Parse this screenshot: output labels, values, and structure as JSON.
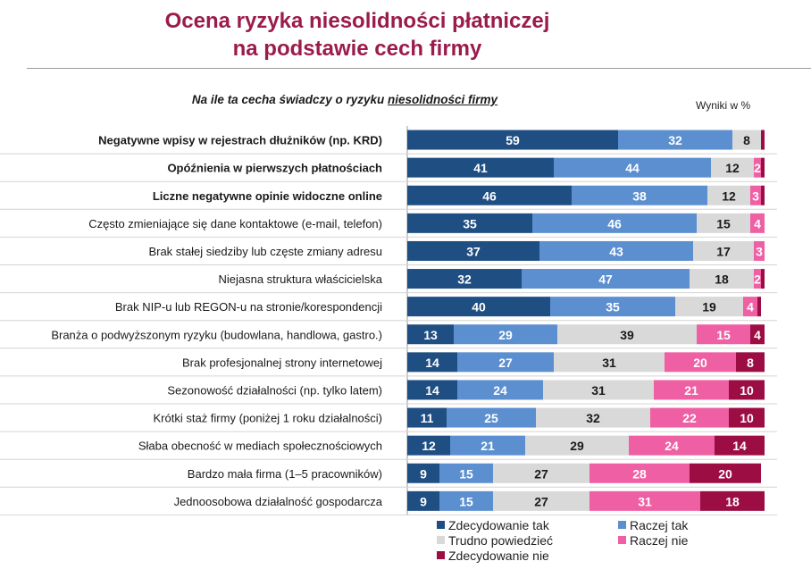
{
  "header": {
    "title_line1": "Ocena ryzyka niesolidności płatniczej",
    "title_line2": "na podstawie cech firmy",
    "subtitle_prefix": "Na ile ta cecha świadczy o ryzyku ",
    "subtitle_underlined": "niesolidności firmy",
    "units": "Wyniki w %"
  },
  "colors": {
    "title": "#9b1b4b",
    "series": [
      "#1f4e83",
      "#5b8fd0",
      "#d9d9d9",
      "#ef5fa3",
      "#9c0d44"
    ],
    "label_on_series": [
      "#ffffff",
      "#ffffff",
      "#1a1a1a",
      "#ffffff",
      "#ffffff"
    ]
  },
  "chart_data": {
    "type": "bar",
    "orientation": "horizontal",
    "stacked": true,
    "xlim": [
      0,
      100
    ],
    "title": "Ocena ryzyka niesolidności płatniczej na podstawie cech firmy",
    "categories": [
      "Negatywne wpisy w rejestrach dłużników (np. KRD)",
      "Opóźnienia w pierwszych płatnościach",
      "Liczne negatywne opinie widoczne online",
      "Często zmieniające się dane kontaktowe (e-mail, telefon)",
      "Brak stałej siedziby lub częste zmiany adresu",
      "Niejasna struktura właścicielska",
      "Brak NIP-u lub REGON-u na stronie/korespondencji",
      "Branża o podwyższonym ryzyku (budowlana, handlowa, gastro.)",
      "Brak profesjonalnej strony internetowej",
      "Sezonowość działalności (np. tylko latem)",
      "Krótki staż firmy (poniżej 1 roku działalności)",
      "Słaba obecność w mediach społecznościowych",
      "Bardzo mała firma (1–5 pracowników)",
      "Jednoosobowa działalność gospodarcza"
    ],
    "bold_categories": [
      0,
      1,
      2
    ],
    "series": [
      {
        "name": "Zdecydowanie tak",
        "values": [
          59,
          41,
          46,
          35,
          37,
          32,
          40,
          13,
          14,
          14,
          11,
          12,
          9,
          9
        ]
      },
      {
        "name": "Raczej tak",
        "values": [
          32,
          44,
          38,
          46,
          43,
          47,
          35,
          29,
          27,
          24,
          25,
          21,
          15,
          15
        ]
      },
      {
        "name": "Trudno powiedzieć",
        "values": [
          8,
          12,
          12,
          15,
          17,
          18,
          19,
          39,
          31,
          31,
          32,
          29,
          27,
          27
        ]
      },
      {
        "name": "Raczej nie",
        "values": [
          null,
          2,
          3,
          4,
          3,
          2,
          4,
          15,
          20,
          21,
          22,
          24,
          28,
          31
        ]
      },
      {
        "name": "Zdecydowanie nie",
        "values": [
          1,
          1,
          1,
          0,
          0,
          1,
          1,
          4,
          8,
          10,
          10,
          14,
          20,
          18
        ]
      }
    ],
    "hidden_labels": [
      [
        0,
        3
      ],
      [
        0,
        4
      ],
      [
        1,
        4
      ],
      [
        2,
        4
      ],
      [
        3,
        4
      ],
      [
        4,
        4
      ],
      [
        5,
        4
      ],
      [
        6,
        4
      ]
    ],
    "legend": [
      "Zdecydowanie tak",
      "Raczej tak",
      "Trudno powiedzieć",
      "Raczej nie",
      "Zdecydowanie nie"
    ]
  }
}
